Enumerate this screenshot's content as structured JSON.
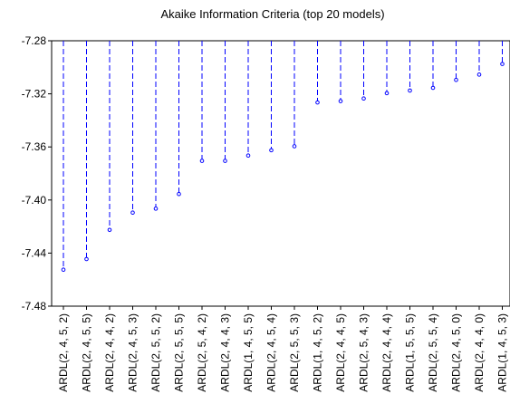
{
  "chart_data": {
    "type": "scatter",
    "style": "dropline-from-top",
    "title": "Akaike Information Criteria (top 20 models)",
    "xlabel": "",
    "ylabel": "",
    "ylim": [
      -7.48,
      -7.28
    ],
    "yticks": [
      -7.28,
      -7.32,
      -7.36,
      -7.4,
      -7.44,
      -7.48
    ],
    "ytick_labels": [
      "-7.28",
      "-7.32",
      "-7.36",
      "-7.40",
      "-7.44",
      "-7.48"
    ],
    "grid": false,
    "legend": "none",
    "color": "#0000ff",
    "categories": [
      "ARDL(2, 4, 5, 2)",
      "ARDL(2, 4, 5, 5)",
      "ARDL(2, 4, 4, 2)",
      "ARDL(2, 4, 5, 3)",
      "ARDL(2, 5, 5, 2)",
      "ARDL(2, 5, 5, 5)",
      "ARDL(2, 5, 4, 2)",
      "ARDL(2, 4, 4, 3)",
      "ARDL(1, 4, 5, 5)",
      "ARDL(2, 4, 5, 4)",
      "ARDL(2, 5, 5, 3)",
      "ARDL(1, 4, 5, 2)",
      "ARDL(2, 4, 4, 5)",
      "ARDL(2, 5, 4, 3)",
      "ARDL(2, 4, 4, 4)",
      "ARDL(1, 5, 5, 5)",
      "ARDL(2, 5, 5, 4)",
      "ARDL(2, 4, 5, 0)",
      "ARDL(2, 4, 4, 0)",
      "ARDL(1, 4, 5, 3)"
    ],
    "values": [
      -7.4525,
      -7.4445,
      -7.4225,
      -7.4095,
      -7.4065,
      -7.3955,
      -7.3705,
      -7.3705,
      -7.3665,
      -7.3625,
      -7.3595,
      -7.3265,
      -7.3255,
      -7.3235,
      -7.3195,
      -7.3175,
      -7.3155,
      -7.3095,
      -7.3055,
      -7.2975
    ]
  }
}
